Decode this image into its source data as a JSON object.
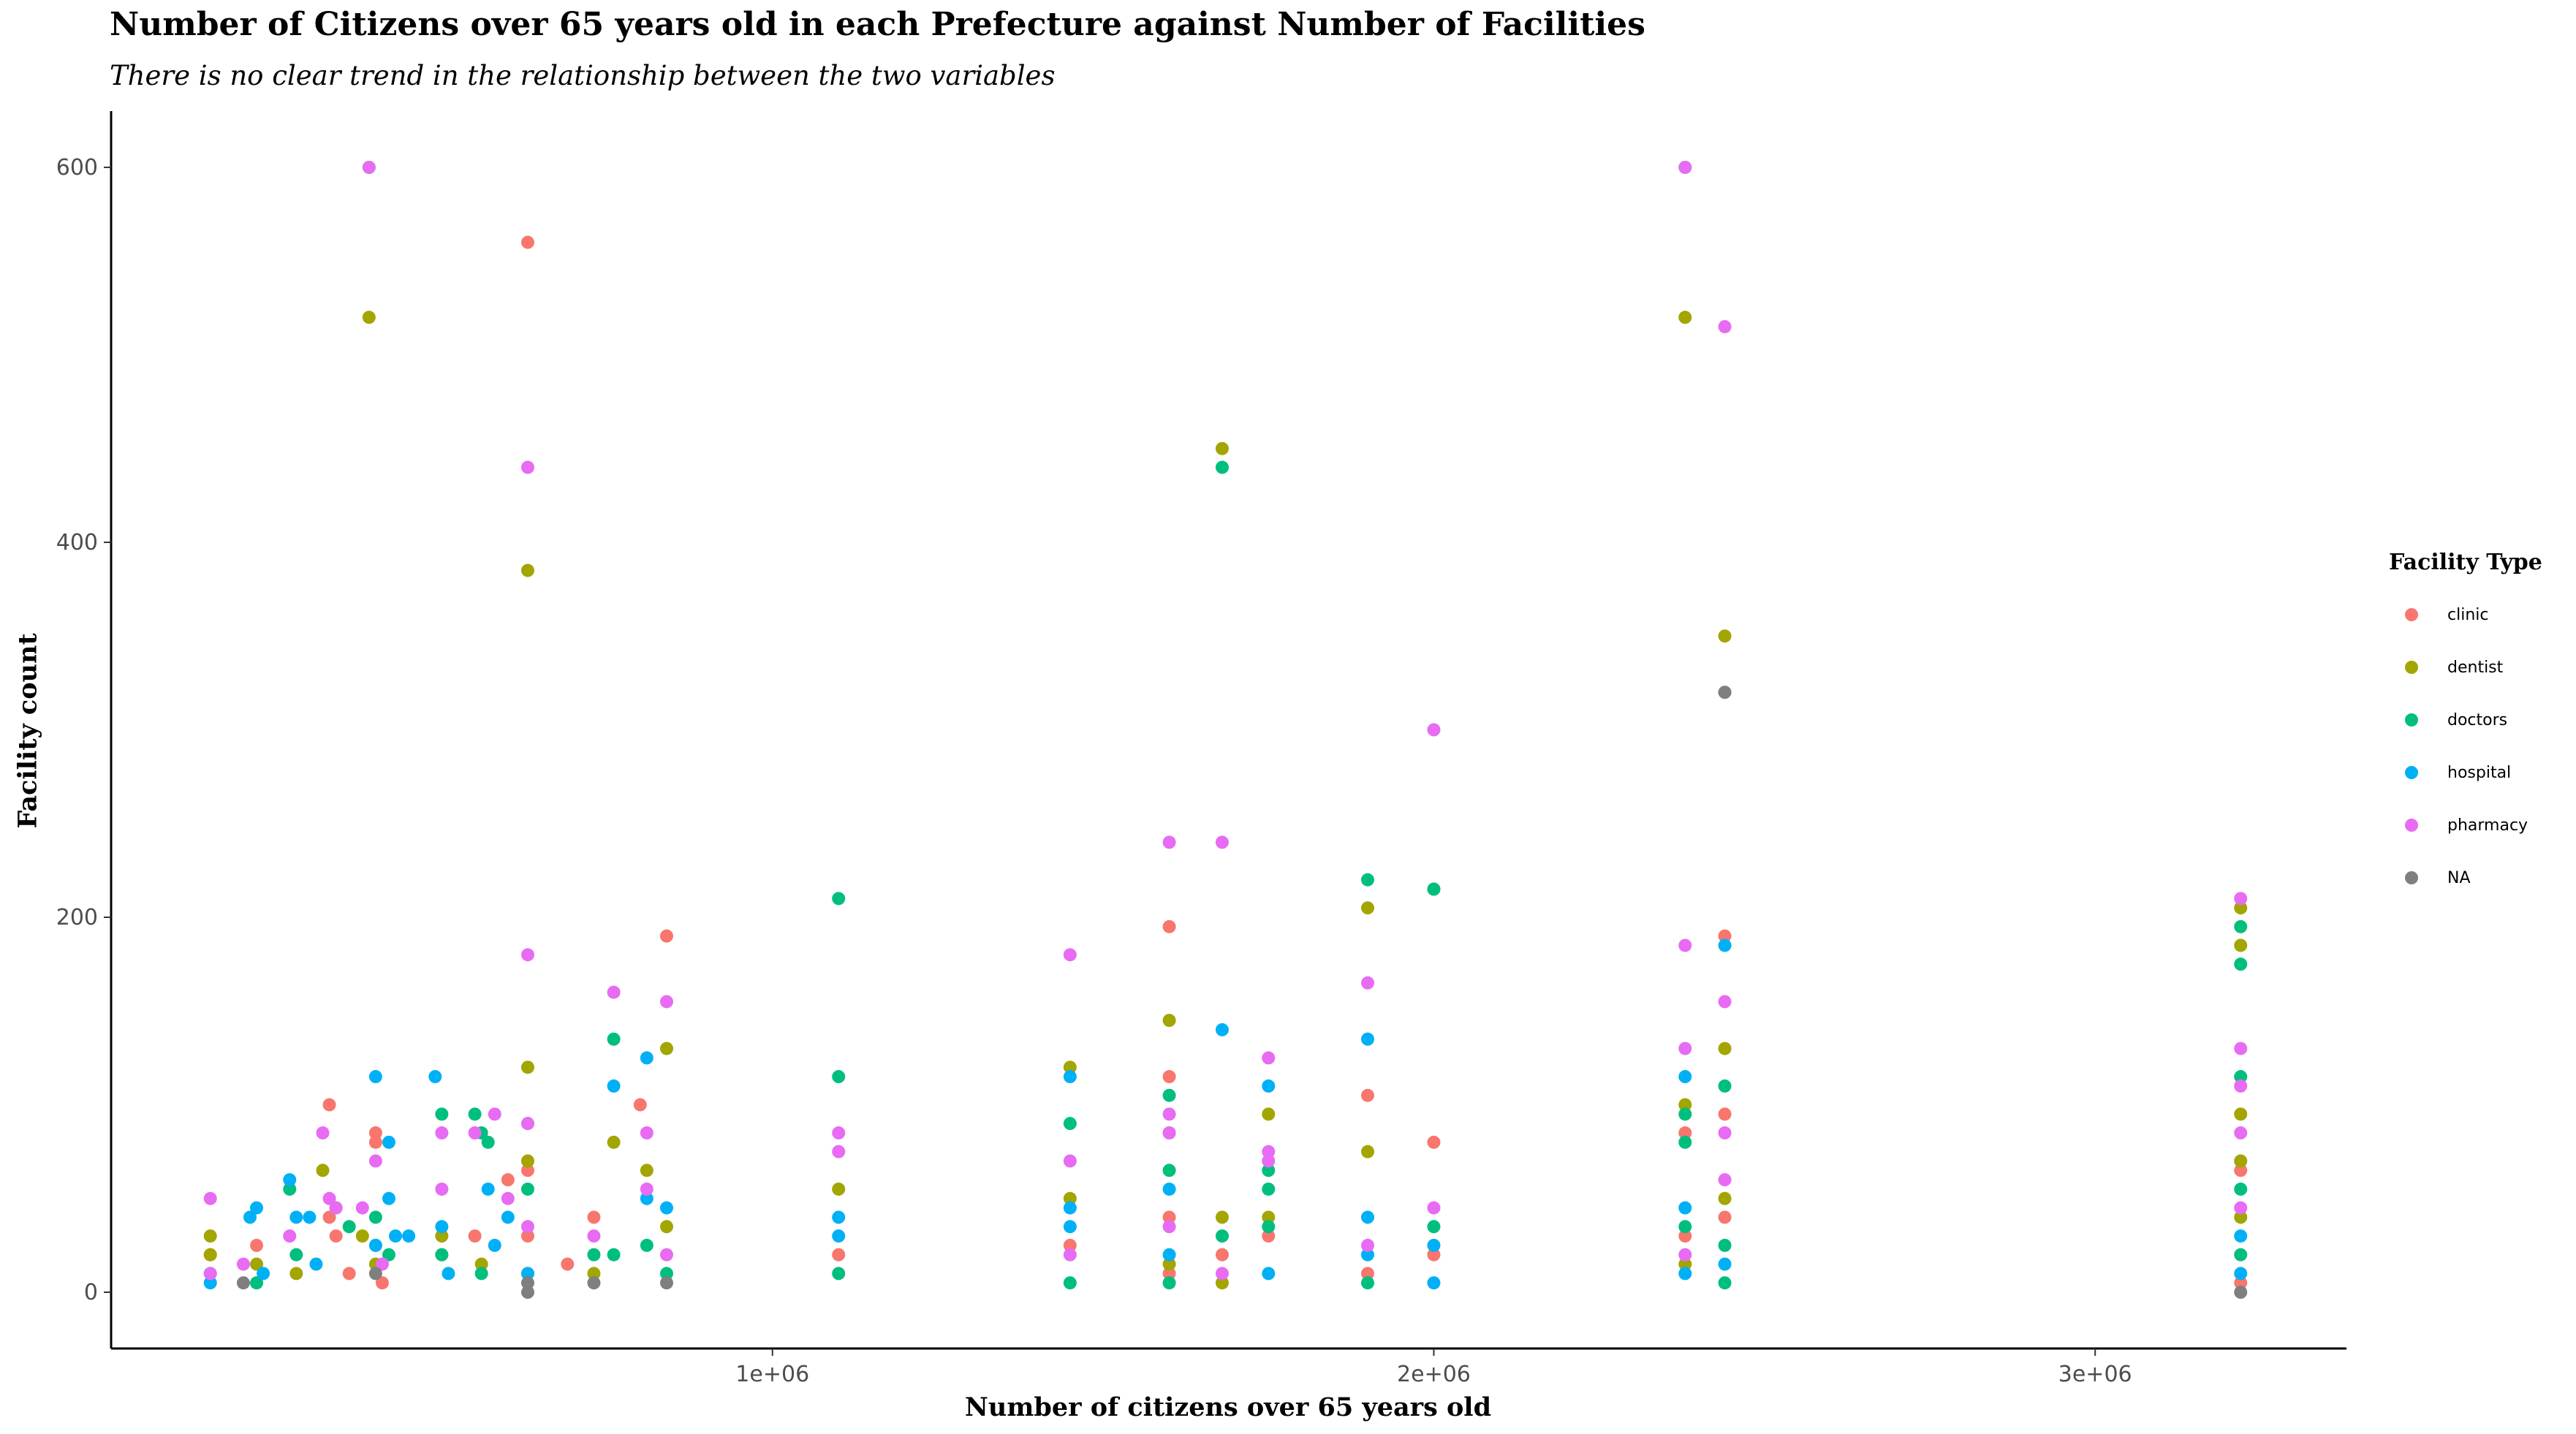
{
  "chart_data": {
    "type": "scatter",
    "title": "Number of Citizens over 65 years old in each Prefecture against Number of Facilities",
    "subtitle": "There is no clear trend in the relationship between the two variables",
    "xlabel": "Number of citizens over 65 years old",
    "ylabel": "Facility count",
    "xlim": [
      0,
      3380000
    ],
    "ylim": [
      -30,
      630
    ],
    "x_ticks": [
      {
        "value": 1000000,
        "label": "1e+06"
      },
      {
        "value": 2000000,
        "label": "2e+06"
      },
      {
        "value": 3000000,
        "label": "3e+06"
      }
    ],
    "y_ticks": [
      {
        "value": 0,
        "label": "0"
      },
      {
        "value": 200,
        "label": "200"
      },
      {
        "value": 400,
        "label": "400"
      },
      {
        "value": 600,
        "label": "600"
      }
    ],
    "grid": false,
    "legend": {
      "title": "Facility Type",
      "placement": "right"
    },
    "series": [
      {
        "name": "clinic",
        "color": "#F8766D",
        "points": [
          [
            150000,
            20
          ],
          [
            220000,
            25
          ],
          [
            330000,
            100
          ],
          [
            330000,
            40
          ],
          [
            340000,
            30
          ],
          [
            360000,
            10
          ],
          [
            400000,
            85
          ],
          [
            400000,
            80
          ],
          [
            400000,
            25
          ],
          [
            410000,
            5
          ],
          [
            500000,
            20
          ],
          [
            550000,
            30
          ],
          [
            600000,
            60
          ],
          [
            630000,
            560
          ],
          [
            630000,
            65
          ],
          [
            630000,
            30
          ],
          [
            690000,
            15
          ],
          [
            730000,
            40
          ],
          [
            800000,
            100
          ],
          [
            840000,
            190
          ],
          [
            1100000,
            20
          ],
          [
            1450000,
            25
          ],
          [
            1600000,
            195
          ],
          [
            1600000,
            115
          ],
          [
            1600000,
            40
          ],
          [
            1600000,
            10
          ],
          [
            1680000,
            20
          ],
          [
            1750000,
            30
          ],
          [
            1900000,
            105
          ],
          [
            1900000,
            10
          ],
          [
            2000000,
            80
          ],
          [
            2000000,
            20
          ],
          [
            2380000,
            85
          ],
          [
            2380000,
            30
          ],
          [
            2440000,
            190
          ],
          [
            2440000,
            95
          ],
          [
            2440000,
            40
          ],
          [
            3220000,
            65
          ],
          [
            3220000,
            5
          ]
        ]
      },
      {
        "name": "dentist",
        "color": "#A3A500",
        "points": [
          [
            150000,
            30
          ],
          [
            150000,
            20
          ],
          [
            220000,
            15
          ],
          [
            280000,
            10
          ],
          [
            320000,
            65
          ],
          [
            340000,
            45
          ],
          [
            380000,
            30
          ],
          [
            390000,
            520
          ],
          [
            400000,
            15
          ],
          [
            500000,
            30
          ],
          [
            560000,
            15
          ],
          [
            630000,
            385
          ],
          [
            630000,
            120
          ],
          [
            630000,
            70
          ],
          [
            630000,
            10
          ],
          [
            730000,
            10
          ],
          [
            760000,
            80
          ],
          [
            810000,
            65
          ],
          [
            840000,
            130
          ],
          [
            840000,
            35
          ],
          [
            1100000,
            55
          ],
          [
            1450000,
            120
          ],
          [
            1450000,
            50
          ],
          [
            1600000,
            145
          ],
          [
            1600000,
            85
          ],
          [
            1600000,
            15
          ],
          [
            1680000,
            450
          ],
          [
            1680000,
            40
          ],
          [
            1680000,
            5
          ],
          [
            1750000,
            95
          ],
          [
            1750000,
            40
          ],
          [
            1900000,
            205
          ],
          [
            1900000,
            75
          ],
          [
            2000000,
            215
          ],
          [
            2380000,
            520
          ],
          [
            2380000,
            100
          ],
          [
            2380000,
            15
          ],
          [
            2440000,
            350
          ],
          [
            2440000,
            130
          ],
          [
            2440000,
            50
          ],
          [
            3220000,
            205
          ],
          [
            3220000,
            185
          ],
          [
            3220000,
            95
          ],
          [
            3220000,
            70
          ],
          [
            3220000,
            40
          ]
        ]
      },
      {
        "name": "doctors",
        "color": "#00BF7D",
        "points": [
          [
            150000,
            10
          ],
          [
            220000,
            5
          ],
          [
            270000,
            55
          ],
          [
            280000,
            20
          ],
          [
            360000,
            35
          ],
          [
            390000,
            600
          ],
          [
            400000,
            40
          ],
          [
            420000,
            20
          ],
          [
            500000,
            95
          ],
          [
            500000,
            20
          ],
          [
            550000,
            95
          ],
          [
            560000,
            85
          ],
          [
            560000,
            10
          ],
          [
            570000,
            80
          ],
          [
            630000,
            90
          ],
          [
            630000,
            55
          ],
          [
            730000,
            20
          ],
          [
            760000,
            135
          ],
          [
            760000,
            20
          ],
          [
            810000,
            25
          ],
          [
            840000,
            10
          ],
          [
            1100000,
            210
          ],
          [
            1100000,
            115
          ],
          [
            1100000,
            10
          ],
          [
            1450000,
            90
          ],
          [
            1450000,
            5
          ],
          [
            1600000,
            105
          ],
          [
            1600000,
            65
          ],
          [
            1600000,
            5
          ],
          [
            1680000,
            440
          ],
          [
            1680000,
            30
          ],
          [
            1750000,
            65
          ],
          [
            1750000,
            55
          ],
          [
            1750000,
            35
          ],
          [
            1900000,
            220
          ],
          [
            1900000,
            5
          ],
          [
            2000000,
            215
          ],
          [
            2000000,
            35
          ],
          [
            2380000,
            600
          ],
          [
            2380000,
            95
          ],
          [
            2380000,
            80
          ],
          [
            2380000,
            35
          ],
          [
            2440000,
            320
          ],
          [
            2440000,
            110
          ],
          [
            2440000,
            25
          ],
          [
            2440000,
            5
          ],
          [
            3220000,
            195
          ],
          [
            3220000,
            175
          ],
          [
            3220000,
            115
          ],
          [
            3220000,
            55
          ],
          [
            3220000,
            20
          ]
        ]
      },
      {
        "name": "hospital",
        "color": "#00B0F6",
        "points": [
          [
            150000,
            5
          ],
          [
            210000,
            40
          ],
          [
            220000,
            45
          ],
          [
            230000,
            10
          ],
          [
            270000,
            60
          ],
          [
            280000,
            40
          ],
          [
            300000,
            40
          ],
          [
            310000,
            15
          ],
          [
            400000,
            115
          ],
          [
            400000,
            25
          ],
          [
            420000,
            50
          ],
          [
            420000,
            80
          ],
          [
            430000,
            30
          ],
          [
            450000,
            30
          ],
          [
            490000,
            115
          ],
          [
            500000,
            35
          ],
          [
            510000,
            10
          ],
          [
            570000,
            55
          ],
          [
            580000,
            25
          ],
          [
            600000,
            40
          ],
          [
            630000,
            10
          ],
          [
            760000,
            110
          ],
          [
            810000,
            125
          ],
          [
            810000,
            50
          ],
          [
            840000,
            45
          ],
          [
            1100000,
            40
          ],
          [
            1100000,
            30
          ],
          [
            1450000,
            115
          ],
          [
            1450000,
            45
          ],
          [
            1450000,
            35
          ],
          [
            1600000,
            55
          ],
          [
            1600000,
            20
          ],
          [
            1680000,
            140
          ],
          [
            1750000,
            110
          ],
          [
            1750000,
            10
          ],
          [
            1900000,
            135
          ],
          [
            1900000,
            40
          ],
          [
            1900000,
            20
          ],
          [
            2000000,
            25
          ],
          [
            2000000,
            5
          ],
          [
            2380000,
            115
          ],
          [
            2380000,
            45
          ],
          [
            2380000,
            10
          ],
          [
            2440000,
            185
          ],
          [
            2440000,
            15
          ],
          [
            3220000,
            10
          ],
          [
            3220000,
            30
          ]
        ]
      },
      {
        "name": "pharmacy",
        "color": "#E76BF3",
        "points": [
          [
            150000,
            50
          ],
          [
            150000,
            10
          ],
          [
            200000,
            15
          ],
          [
            270000,
            30
          ],
          [
            320000,
            85
          ],
          [
            330000,
            50
          ],
          [
            340000,
            45
          ],
          [
            380000,
            45
          ],
          [
            390000,
            600
          ],
          [
            400000,
            70
          ],
          [
            410000,
            15
          ],
          [
            500000,
            85
          ],
          [
            500000,
            55
          ],
          [
            550000,
            85
          ],
          [
            580000,
            95
          ],
          [
            600000,
            50
          ],
          [
            630000,
            440
          ],
          [
            630000,
            180
          ],
          [
            630000,
            90
          ],
          [
            630000,
            35
          ],
          [
            730000,
            30
          ],
          [
            760000,
            160
          ],
          [
            810000,
            85
          ],
          [
            810000,
            55
          ],
          [
            840000,
            155
          ],
          [
            840000,
            20
          ],
          [
            1100000,
            85
          ],
          [
            1100000,
            75
          ],
          [
            1450000,
            180
          ],
          [
            1450000,
            70
          ],
          [
            1450000,
            20
          ],
          [
            1600000,
            240
          ],
          [
            1600000,
            95
          ],
          [
            1600000,
            85
          ],
          [
            1600000,
            35
          ],
          [
            1680000,
            240
          ],
          [
            1680000,
            10
          ],
          [
            1750000,
            125
          ],
          [
            1750000,
            75
          ],
          [
            1750000,
            70
          ],
          [
            1900000,
            165
          ],
          [
            1900000,
            25
          ],
          [
            2000000,
            300
          ],
          [
            2000000,
            45
          ],
          [
            2380000,
            600
          ],
          [
            2380000,
            185
          ],
          [
            2380000,
            130
          ],
          [
            2380000,
            20
          ],
          [
            2440000,
            515
          ],
          [
            2440000,
            155
          ],
          [
            2440000,
            85
          ],
          [
            2440000,
            60
          ],
          [
            3220000,
            210
          ],
          [
            3220000,
            130
          ],
          [
            3220000,
            85
          ],
          [
            3220000,
            110
          ],
          [
            3220000,
            45
          ]
        ]
      },
      {
        "name": "NA",
        "color": "#7F7F7F",
        "points": [
          [
            200000,
            5
          ],
          [
            400000,
            10
          ],
          [
            630000,
            0
          ],
          [
            630000,
            5
          ],
          [
            730000,
            5
          ],
          [
            840000,
            5
          ],
          [
            2440000,
            320
          ],
          [
            3220000,
            0
          ]
        ]
      }
    ]
  }
}
